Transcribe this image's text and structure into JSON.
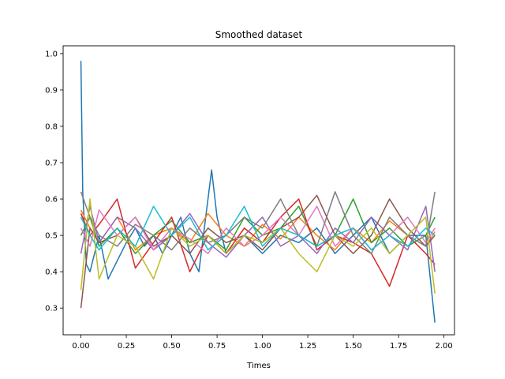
{
  "chart_data": {
    "type": "line",
    "title": "Smoothed dataset",
    "xlabel": "Times",
    "ylabel": "",
    "xlim": [
      -0.098,
      2.058
    ],
    "ylim": [
      0.2265,
      1.0215
    ],
    "xticks": [
      0.0,
      0.25,
      0.5,
      0.75,
      1.0,
      1.25,
      1.5,
      1.75,
      2.0
    ],
    "xtick_labels": [
      "0.00",
      "0.25",
      "0.50",
      "0.75",
      "1.00",
      "1.25",
      "1.50",
      "1.75",
      "2.00"
    ],
    "yticks": [
      0.3,
      0.4,
      0.5,
      0.6,
      0.7,
      0.8,
      0.9,
      1.0
    ],
    "ytick_labels": [
      "0.3",
      "0.4",
      "0.5",
      "0.6",
      "0.7",
      "0.8",
      "0.9",
      "1.0"
    ],
    "grid": false,
    "legend": "none",
    "colors": [
      "#1f77b4",
      "#ff7f0e",
      "#2ca02c",
      "#d62728",
      "#9467bd",
      "#8c564b",
      "#e377c2",
      "#7f7f7f",
      "#bcbd22",
      "#17becf"
    ],
    "series": [
      {
        "x": [
          0,
          0.01,
          0.03,
          0.05,
          0.1,
          0.15,
          0.2,
          0.25,
          0.3,
          0.35,
          0.4,
          0.45,
          0.5,
          0.55,
          0.6,
          0.65,
          0.7,
          0.72,
          0.75,
          0.8,
          0.9,
          1.0,
          1.1,
          1.2,
          1.3,
          1.4,
          1.5,
          1.6,
          1.7,
          1.8,
          1.9,
          1.95
        ],
        "y": [
          0.98,
          0.62,
          0.42,
          0.4,
          0.5,
          0.38,
          0.43,
          0.48,
          0.52,
          0.47,
          0.5,
          0.45,
          0.5,
          0.55,
          0.45,
          0.4,
          0.6,
          0.68,
          0.55,
          0.45,
          0.5,
          0.45,
          0.5,
          0.48,
          0.52,
          0.45,
          0.5,
          0.55,
          0.45,
          0.5,
          0.5,
          0.26
        ]
      },
      {
        "x": [
          0,
          0.05,
          0.1,
          0.2,
          0.3,
          0.4,
          0.5,
          0.6,
          0.7,
          0.8,
          0.9,
          1.0,
          1.1,
          1.2,
          1.3,
          1.4,
          1.5,
          1.6,
          1.7,
          1.8,
          1.9,
          1.95
        ],
        "y": [
          0.57,
          0.52,
          0.48,
          0.55,
          0.46,
          0.5,
          0.52,
          0.48,
          0.56,
          0.5,
          0.47,
          0.53,
          0.49,
          0.55,
          0.5,
          0.46,
          0.52,
          0.48,
          0.54,
          0.5,
          0.47,
          0.51
        ]
      },
      {
        "x": [
          0,
          0.05,
          0.1,
          0.2,
          0.3,
          0.4,
          0.5,
          0.6,
          0.7,
          0.8,
          0.9,
          1.0,
          1.1,
          1.2,
          1.3,
          1.4,
          1.5,
          1.6,
          1.7,
          1.8,
          1.9,
          1.95
        ],
        "y": [
          0.5,
          0.55,
          0.47,
          0.52,
          0.45,
          0.5,
          0.54,
          0.48,
          0.5,
          0.46,
          0.55,
          0.5,
          0.52,
          0.58,
          0.47,
          0.5,
          0.6,
          0.48,
          0.52,
          0.47,
          0.5,
          0.55
        ]
      },
      {
        "x": [
          0,
          0.05,
          0.1,
          0.2,
          0.3,
          0.4,
          0.5,
          0.6,
          0.7,
          0.8,
          0.9,
          1.0,
          1.1,
          1.2,
          1.3,
          1.4,
          1.5,
          1.6,
          1.7,
          1.8,
          1.9,
          1.95
        ],
        "y": [
          0.56,
          0.5,
          0.53,
          0.6,
          0.41,
          0.48,
          0.55,
          0.4,
          0.5,
          0.45,
          0.52,
          0.48,
          0.55,
          0.6,
          0.46,
          0.5,
          0.48,
          0.45,
          0.36,
          0.5,
          0.45,
          0.42
        ]
      },
      {
        "x": [
          0,
          0.05,
          0.1,
          0.2,
          0.3,
          0.4,
          0.5,
          0.6,
          0.7,
          0.8,
          0.9,
          1.0,
          1.1,
          1.2,
          1.3,
          1.4,
          1.5,
          1.6,
          1.7,
          1.8,
          1.9,
          1.95
        ],
        "y": [
          0.45,
          0.58,
          0.48,
          0.55,
          0.52,
          0.46,
          0.5,
          0.56,
          0.48,
          0.44,
          0.5,
          0.55,
          0.47,
          0.5,
          0.45,
          0.52,
          0.48,
          0.55,
          0.5,
          0.46,
          0.58,
          0.4
        ]
      },
      {
        "x": [
          0,
          0.05,
          0.1,
          0.2,
          0.3,
          0.4,
          0.5,
          0.6,
          0.7,
          0.8,
          0.9,
          1.0,
          1.1,
          1.2,
          1.3,
          1.4,
          1.5,
          1.6,
          1.7,
          1.8,
          1.9,
          1.95
        ],
        "y": [
          0.3,
          0.52,
          0.48,
          0.5,
          0.55,
          0.47,
          0.5,
          0.45,
          0.52,
          0.48,
          0.5,
          0.46,
          0.52,
          0.55,
          0.61,
          0.5,
          0.45,
          0.5,
          0.6,
          0.52,
          0.47,
          0.5
        ]
      },
      {
        "x": [
          0,
          0.05,
          0.1,
          0.2,
          0.3,
          0.4,
          0.5,
          0.6,
          0.7,
          0.8,
          0.9,
          1.0,
          1.1,
          1.2,
          1.3,
          1.4,
          1.5,
          1.6,
          1.7,
          1.8,
          1.9,
          1.95
        ],
        "y": [
          0.52,
          0.47,
          0.57,
          0.5,
          0.55,
          0.46,
          0.52,
          0.49,
          0.45,
          0.52,
          0.47,
          0.5,
          0.55,
          0.5,
          0.58,
          0.47,
          0.52,
          0.46,
          0.5,
          0.55,
          0.48,
          0.52
        ]
      },
      {
        "x": [
          0,
          0.05,
          0.1,
          0.2,
          0.3,
          0.4,
          0.5,
          0.6,
          0.7,
          0.8,
          0.9,
          1.0,
          1.1,
          1.2,
          1.3,
          1.4,
          1.5,
          1.6,
          1.7,
          1.8,
          1.9,
          1.95
        ],
        "y": [
          0.62,
          0.55,
          0.5,
          0.47,
          0.53,
          0.5,
          0.46,
          0.52,
          0.48,
          0.5,
          0.55,
          0.52,
          0.6,
          0.5,
          0.47,
          0.62,
          0.5,
          0.45,
          0.55,
          0.5,
          0.47,
          0.62
        ]
      },
      {
        "x": [
          0,
          0.05,
          0.1,
          0.2,
          0.3,
          0.4,
          0.5,
          0.6,
          0.7,
          0.8,
          0.9,
          1.0,
          1.1,
          1.2,
          1.3,
          1.4,
          1.5,
          1.6,
          1.7,
          1.8,
          1.9,
          1.95
        ],
        "y": [
          0.35,
          0.6,
          0.38,
          0.5,
          0.47,
          0.38,
          0.52,
          0.47,
          0.5,
          0.45,
          0.5,
          0.48,
          0.52,
          0.45,
          0.4,
          0.5,
          0.47,
          0.52,
          0.45,
          0.5,
          0.55,
          0.34
        ]
      },
      {
        "x": [
          0,
          0.05,
          0.1,
          0.2,
          0.3,
          0.4,
          0.5,
          0.6,
          0.7,
          0.8,
          0.9,
          1.0,
          1.1,
          1.2,
          1.3,
          1.4,
          1.5,
          1.6,
          1.7,
          1.8,
          1.9,
          1.95
        ],
        "y": [
          0.55,
          0.5,
          0.46,
          0.52,
          0.47,
          0.58,
          0.5,
          0.55,
          0.46,
          0.5,
          0.58,
          0.47,
          0.52,
          0.5,
          0.47,
          0.5,
          0.52,
          0.46,
          0.5,
          0.47,
          0.52,
          0.5
        ]
      }
    ]
  }
}
